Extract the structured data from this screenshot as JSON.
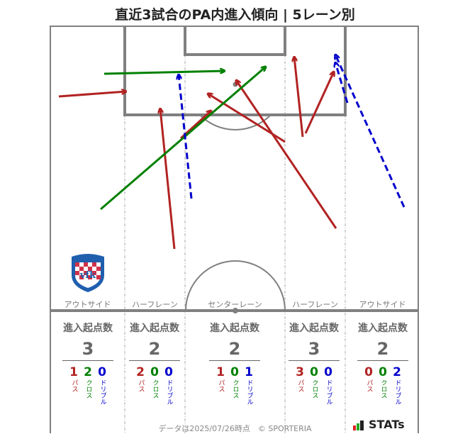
{
  "title": "直近3試合のPA内進入傾向 | 5レーン別",
  "colors": {
    "pass": "#b22222",
    "cross": "#008000",
    "dribble": "#0000cc",
    "line": "#808080"
  },
  "lanes": [
    {
      "label": "アウトサイド",
      "header": "進入起点数",
      "total": "3",
      "pass": "1",
      "cross": "2",
      "dribble": "0"
    },
    {
      "label": "ハーフレーン",
      "header": "進入起点数",
      "total": "2",
      "pass": "2",
      "cross": "0",
      "dribble": "0"
    },
    {
      "label": "センターレーン",
      "header": "進入起点数",
      "total": "2",
      "pass": "1",
      "cross": "0",
      "dribble": "1"
    },
    {
      "label": "ハーフレーン",
      "header": "進入起点数",
      "total": "3",
      "pass": "3",
      "cross": "0",
      "dribble": "0"
    },
    {
      "label": "アウトサイド",
      "header": "進入起点数",
      "total": "2",
      "pass": "0",
      "cross": "0",
      "dribble": "2"
    }
  ],
  "type_labels": {
    "pass": "パス",
    "cross": "クロス",
    "dribble": "ドリブル"
  },
  "footer": "データは2025/07/26時点　© SPORTERIA",
  "brand": "STATs",
  "team_emblem": "vfk"
}
